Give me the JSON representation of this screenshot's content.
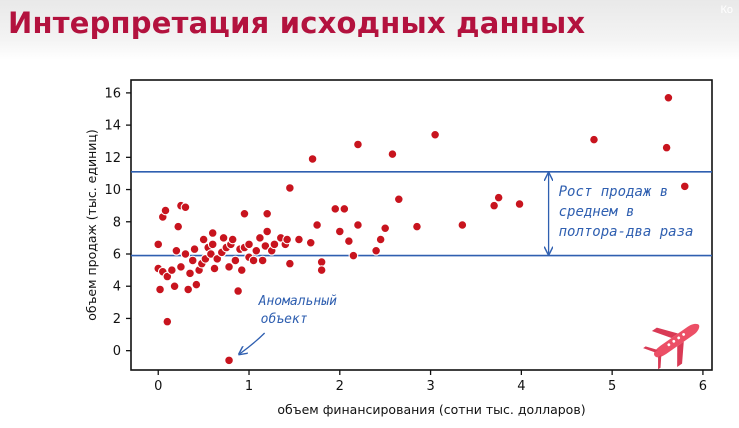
{
  "header": {
    "title": "Интерпретация исходных данных",
    "corner_label": "Ко"
  },
  "chart_data": {
    "type": "scatter",
    "title": "",
    "xlabel": "объем финансирования (сотни тыс. долларов)",
    "ylabel": "объем продаж (тыс. единиц)",
    "xlim": [
      -0.3,
      6.1
    ],
    "ylim": [
      -1.2,
      16.8
    ],
    "xticks": [
      0,
      1,
      2,
      3,
      4,
      5,
      6
    ],
    "yticks": [
      0,
      2,
      4,
      6,
      8,
      10,
      12,
      14,
      16
    ],
    "grid": false,
    "colors": {
      "point": "#c8141e",
      "point_edge": "#ffffff",
      "lines": "#2f5fb0"
    },
    "reference_lines": [
      {
        "y": 11.1
      },
      {
        "y": 5.9
      }
    ],
    "annotations": [
      {
        "text_lines": [
          "Рост продаж в",
          "среднем в",
          "полтора-два раза"
        ],
        "x": 4.3,
        "y": 9.3,
        "arrow": "double-vertical"
      },
      {
        "text_lines": [
          "Аномальный",
          "объект"
        ],
        "x": 1.15,
        "y": 3.0,
        "arrow_to": [
          0.8,
          -0.5
        ]
      }
    ],
    "icon": "airplane-icon",
    "points": [
      [
        0.0,
        6.6
      ],
      [
        0.0,
        5.1
      ],
      [
        0.05,
        4.9
      ],
      [
        0.02,
        3.8
      ],
      [
        0.05,
        8.3
      ],
      [
        0.08,
        8.7
      ],
      [
        0.1,
        1.8
      ],
      [
        0.1,
        4.6
      ],
      [
        0.15,
        5.0
      ],
      [
        0.18,
        4.0
      ],
      [
        0.2,
        6.2
      ],
      [
        0.22,
        7.7
      ],
      [
        0.25,
        9.0
      ],
      [
        0.3,
        8.9
      ],
      [
        0.25,
        5.2
      ],
      [
        0.3,
        6.0
      ],
      [
        0.33,
        3.8
      ],
      [
        0.35,
        4.8
      ],
      [
        0.38,
        5.6
      ],
      [
        0.4,
        6.3
      ],
      [
        0.42,
        4.1
      ],
      [
        0.45,
        5.0
      ],
      [
        0.48,
        5.4
      ],
      [
        0.5,
        6.9
      ],
      [
        0.52,
        5.7
      ],
      [
        0.55,
        6.4
      ],
      [
        0.58,
        6.0
      ],
      [
        0.6,
        6.6
      ],
      [
        0.6,
        7.3
      ],
      [
        0.62,
        5.1
      ],
      [
        0.65,
        5.7
      ],
      [
        0.7,
        6.1
      ],
      [
        0.72,
        7.0
      ],
      [
        0.75,
        6.4
      ],
      [
        0.78,
        5.2
      ],
      [
        0.8,
        6.6
      ],
      [
        0.82,
        6.9
      ],
      [
        0.85,
        5.6
      ],
      [
        0.88,
        3.7
      ],
      [
        0.9,
        6.3
      ],
      [
        0.92,
        5.0
      ],
      [
        0.95,
        6.4
      ],
      [
        0.95,
        8.5
      ],
      [
        1.0,
        5.8
      ],
      [
        1.0,
        6.6
      ],
      [
        1.05,
        5.6
      ],
      [
        1.08,
        6.2
      ],
      [
        1.12,
        7.0
      ],
      [
        1.15,
        5.6
      ],
      [
        1.18,
        6.5
      ],
      [
        1.2,
        7.4
      ],
      [
        1.2,
        8.5
      ],
      [
        1.25,
        6.2
      ],
      [
        1.28,
        6.6
      ],
      [
        1.35,
        7.0
      ],
      [
        1.4,
        6.6
      ],
      [
        1.42,
        6.9
      ],
      [
        1.45,
        5.4
      ],
      [
        1.45,
        10.1
      ],
      [
        1.55,
        6.9
      ],
      [
        1.68,
        6.7
      ],
      [
        1.7,
        11.9
      ],
      [
        1.75,
        7.8
      ],
      [
        1.8,
        5.5
      ],
      [
        1.8,
        5.0
      ],
      [
        1.95,
        8.8
      ],
      [
        2.0,
        7.4
      ],
      [
        2.05,
        8.8
      ],
      [
        2.1,
        6.8
      ],
      [
        2.15,
        5.9
      ],
      [
        2.2,
        12.8
      ],
      [
        2.2,
        7.8
      ],
      [
        2.4,
        6.2
      ],
      [
        2.45,
        6.9
      ],
      [
        2.5,
        7.6
      ],
      [
        2.58,
        12.2
      ],
      [
        2.65,
        9.4
      ],
      [
        2.85,
        7.7
      ],
      [
        3.05,
        13.4
      ],
      [
        3.35,
        7.8
      ],
      [
        3.7,
        9.0
      ],
      [
        3.75,
        9.5
      ],
      [
        3.98,
        9.1
      ],
      [
        4.8,
        13.1
      ],
      [
        5.6,
        12.6
      ],
      [
        5.62,
        15.7
      ],
      [
        5.8,
        10.2
      ],
      [
        0.78,
        -0.6
      ]
    ]
  }
}
